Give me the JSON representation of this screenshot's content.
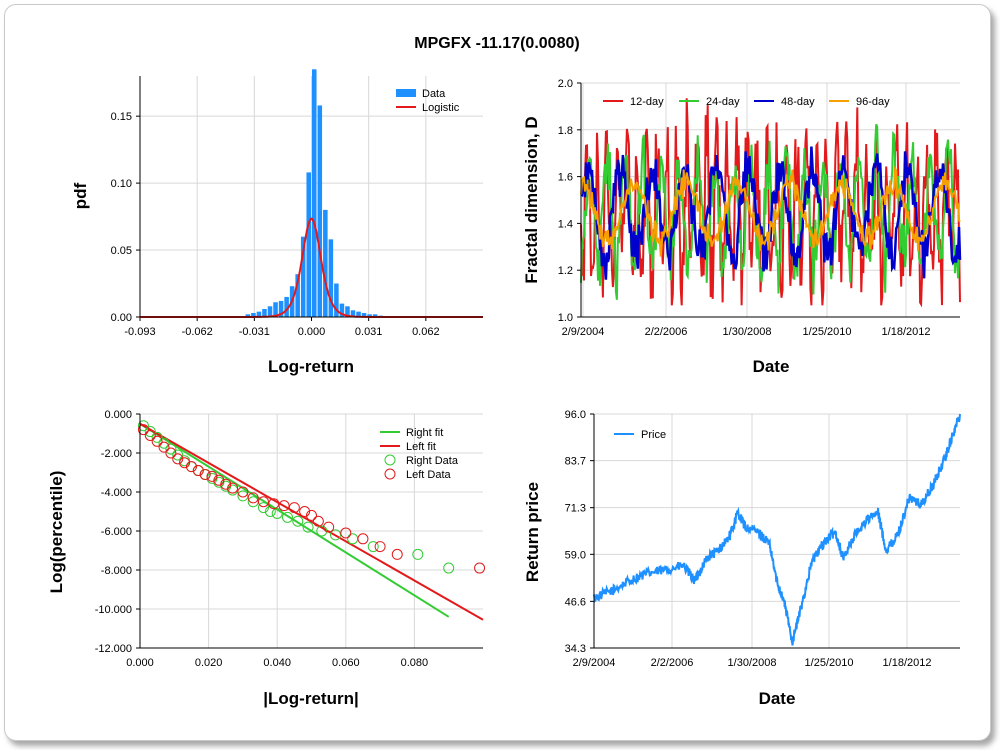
{
  "title": "MPGFX -11.17(0.0080)",
  "colors": {
    "bar": "#1e90ff",
    "logistic": "#e31a1c",
    "d12": "#e31a1c",
    "d24": "#33cc33",
    "d48": "#0000cc",
    "d96": "#f5a000",
    "rightfit": "#33cc33",
    "leftfit": "#e31a1c",
    "price": "#1e90ff"
  },
  "chart_data": [
    {
      "id": "pdf",
      "type": "bar",
      "xlabel": "Log-return",
      "ylabel": "pdf",
      "xlim": [
        -0.093,
        0.093
      ],
      "ylim": [
        0,
        0.18
      ],
      "xticks": [
        -0.093,
        -0.062,
        -0.031,
        0.0,
        0.031,
        0.062
      ],
      "xtick_labels": [
        "-0.093",
        "-0.062",
        "-0.031",
        "0.000",
        "0.031",
        "0.062"
      ],
      "yticks": [
        0,
        0.05,
        0.1,
        0.15
      ],
      "ytick_labels": [
        "0.00",
        "0.05",
        "0.10",
        "0.15"
      ],
      "legend": [
        "Data",
        "Logistic"
      ],
      "bin_width": 0.003,
      "bins_x": [
        -0.0345,
        -0.0315,
        -0.0285,
        -0.0255,
        -0.0225,
        -0.0195,
        -0.0165,
        -0.0135,
        -0.0105,
        -0.0075,
        -0.0045,
        -0.0015,
        0.0015,
        0.0045,
        0.0075,
        0.0105,
        0.0135,
        0.0165,
        0.0195,
        0.0225,
        0.0255,
        0.0285,
        0.0315,
        0.0345,
        0.0375
      ],
      "bins_y": [
        0.002,
        0.003,
        0.004,
        0.006,
        0.008,
        0.011,
        0.012,
        0.015,
        0.023,
        0.032,
        0.06,
        0.108,
        0.185,
        0.158,
        0.08,
        0.058,
        0.025,
        0.01,
        0.008,
        0.005,
        0.004,
        0.003,
        0.002,
        0.002,
        0.001
      ],
      "logistic_mu": 0.0,
      "logistic_s": 0.0034
    },
    {
      "id": "fractal",
      "type": "line",
      "xlabel": "Date",
      "ylabel": "Fractal dimension, D",
      "ylim": [
        1.0,
        2.0
      ],
      "yticks": [
        1.0,
        1.2,
        1.4,
        1.6,
        1.8,
        2.0
      ],
      "ytick_labels": [
        "1.0",
        "1.2",
        "1.4",
        "1.6",
        "1.8",
        "2.0"
      ],
      "xtick_labels": [
        "2/9/2004",
        "2/2/2006",
        "1/30/2008",
        "1/25/2010",
        "1/18/2012"
      ],
      "series_names": [
        "12-day",
        "24-day",
        "48-day",
        "96-day"
      ]
    },
    {
      "id": "tail",
      "type": "scatter",
      "xlabel": "|Log-return|",
      "ylabel": "Log(percentile)",
      "xlim": [
        0,
        0.1
      ],
      "ylim": [
        -12,
        0
      ],
      "xticks": [
        0,
        0.02,
        0.04,
        0.06,
        0.08
      ],
      "xtick_labels": [
        "0.000",
        "0.020",
        "0.040",
        "0.060",
        "0.080"
      ],
      "yticks": [
        0,
        -2,
        -4,
        -6,
        -8,
        -10,
        -12
      ],
      "ytick_labels": [
        "0.000",
        "-2.000",
        "-4.000",
        "-6.000",
        "-8.000",
        "-10.000",
        "-12.000"
      ],
      "legend": [
        "Right fit",
        "Left fit",
        "Right Data",
        "Left Data"
      ],
      "right_fit": [
        [
          0.0,
          -0.5
        ],
        [
          0.09,
          -10.4
        ]
      ],
      "left_fit": [
        [
          0.0,
          -0.5
        ],
        [
          0.1,
          -10.55
        ]
      ],
      "right_data": [
        [
          0.001,
          -0.6
        ],
        [
          0.003,
          -0.9
        ],
        [
          0.005,
          -1.2
        ],
        [
          0.007,
          -1.5
        ],
        [
          0.009,
          -1.8
        ],
        [
          0.011,
          -2.1
        ],
        [
          0.013,
          -2.4
        ],
        [
          0.015,
          -2.7
        ],
        [
          0.017,
          -2.9
        ],
        [
          0.019,
          -3.1
        ],
        [
          0.021,
          -3.3
        ],
        [
          0.023,
          -3.5
        ],
        [
          0.025,
          -3.7
        ],
        [
          0.027,
          -3.9
        ],
        [
          0.03,
          -4.2
        ],
        [
          0.033,
          -4.5
        ],
        [
          0.036,
          -4.8
        ],
        [
          0.038,
          -5.0
        ],
        [
          0.04,
          -5.1
        ],
        [
          0.043,
          -5.3
        ],
        [
          0.046,
          -5.5
        ],
        [
          0.049,
          -5.8
        ],
        [
          0.053,
          -6.0
        ],
        [
          0.057,
          -6.2
        ],
        [
          0.062,
          -6.4
        ],
        [
          0.068,
          -6.8
        ],
        [
          0.081,
          -7.2
        ],
        [
          0.09,
          -7.9
        ]
      ],
      "left_data": [
        [
          0.001,
          -0.8
        ],
        [
          0.003,
          -1.1
        ],
        [
          0.005,
          -1.4
        ],
        [
          0.007,
          -1.7
        ],
        [
          0.009,
          -2.0
        ],
        [
          0.011,
          -2.3
        ],
        [
          0.013,
          -2.5
        ],
        [
          0.015,
          -2.7
        ],
        [
          0.017,
          -2.9
        ],
        [
          0.019,
          -3.1
        ],
        [
          0.021,
          -3.2
        ],
        [
          0.023,
          -3.4
        ],
        [
          0.025,
          -3.6
        ],
        [
          0.027,
          -3.8
        ],
        [
          0.03,
          -4.0
        ],
        [
          0.033,
          -4.3
        ],
        [
          0.036,
          -4.5
        ],
        [
          0.039,
          -4.6
        ],
        [
          0.042,
          -4.7
        ],
        [
          0.045,
          -4.8
        ],
        [
          0.048,
          -5.0
        ],
        [
          0.05,
          -5.2
        ],
        [
          0.052,
          -5.5
        ],
        [
          0.055,
          -5.8
        ],
        [
          0.06,
          -6.1
        ],
        [
          0.065,
          -6.4
        ],
        [
          0.07,
          -6.8
        ],
        [
          0.075,
          -7.2
        ],
        [
          0.099,
          -7.9
        ]
      ]
    },
    {
      "id": "price",
      "type": "line",
      "xlabel": "Date",
      "ylabel": "Return price",
      "ylim": [
        34.3,
        96.0
      ],
      "yticks": [
        34.3,
        46.6,
        59.0,
        71.3,
        83.7,
        96.0
      ],
      "ytick_labels": [
        "34.3",
        "46.6",
        "59.0",
        "71.3",
        "83.7",
        "96.0"
      ],
      "xtick_labels": [
        "2/9/2004",
        "2/2/2006",
        "1/30/2008",
        "1/25/2010",
        "1/18/2012"
      ],
      "legend": [
        "Price"
      ],
      "x_range": [
        2004.11,
        2013.5
      ],
      "anchors": [
        [
          2004.11,
          47.5
        ],
        [
          2004.6,
          49.5
        ],
        [
          2005.0,
          52
        ],
        [
          2005.5,
          54
        ],
        [
          2006.0,
          55
        ],
        [
          2006.4,
          56
        ],
        [
          2006.7,
          52
        ],
        [
          2007.0,
          58
        ],
        [
          2007.3,
          60
        ],
        [
          2007.6,
          64
        ],
        [
          2007.8,
          70
        ],
        [
          2008.0,
          66
        ],
        [
          2008.3,
          65
        ],
        [
          2008.6,
          62
        ],
        [
          2008.8,
          52
        ],
        [
          2009.0,
          46
        ],
        [
          2009.2,
          36
        ],
        [
          2009.4,
          44
        ],
        [
          2009.7,
          57
        ],
        [
          2010.0,
          62
        ],
        [
          2010.3,
          65
        ],
        [
          2010.5,
          58
        ],
        [
          2010.8,
          64
        ],
        [
          2011.1,
          68
        ],
        [
          2011.4,
          70
        ],
        [
          2011.6,
          60
        ],
        [
          2011.9,
          64
        ],
        [
          2012.2,
          74
        ],
        [
          2012.5,
          72
        ],
        [
          2012.8,
          77
        ],
        [
          2013.1,
          84
        ],
        [
          2013.3,
          90
        ],
        [
          2013.5,
          96
        ]
      ]
    }
  ]
}
